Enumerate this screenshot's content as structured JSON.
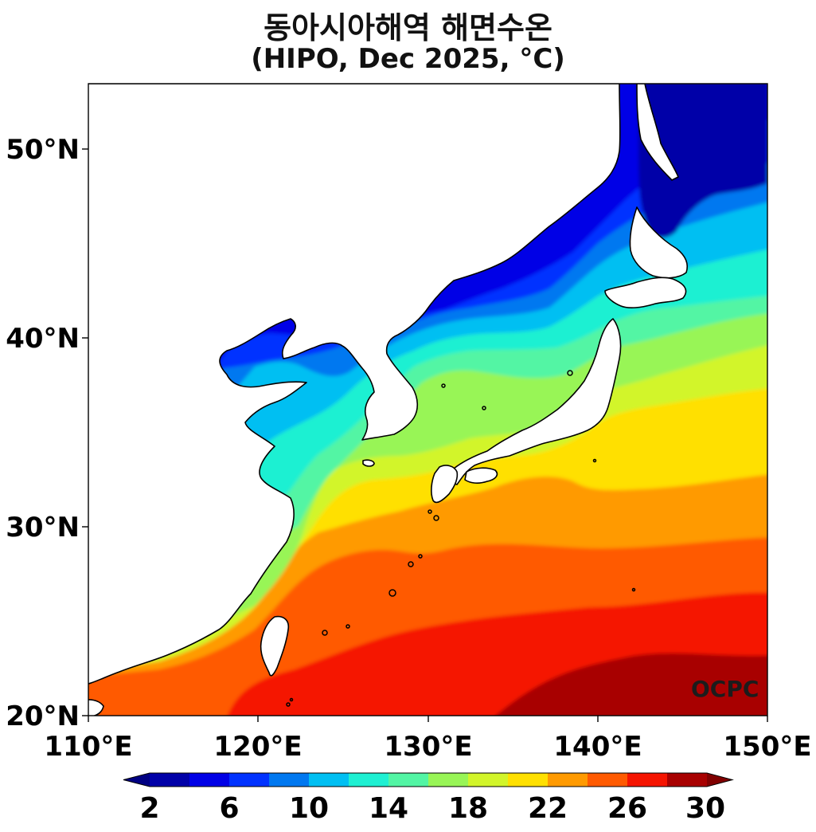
{
  "title_line1": "동아시아해역 해면수온",
  "title_line2": "(HIPO, Dec 2025, °C)",
  "watermark": "OCPC",
  "map": {
    "lon_range": [
      110,
      150
    ],
    "lat_range": [
      20,
      53.5
    ],
    "x_ticks": [
      "110°E",
      "120°E",
      "130°E",
      "140°E",
      "150°E"
    ],
    "y_ticks": [
      "20°N",
      "30°N",
      "40°N",
      "50°N"
    ]
  },
  "colorbar": {
    "levels": [
      2,
      4,
      6,
      8,
      10,
      12,
      14,
      16,
      18,
      20,
      22,
      24,
      26,
      28,
      30
    ],
    "tick_labels": [
      "2",
      "6",
      "10",
      "14",
      "18",
      "22",
      "26",
      "30"
    ],
    "colors": [
      "#0000a8",
      "#0000e6",
      "#0032ff",
      "#0078f0",
      "#00bff2",
      "#1ef0d2",
      "#52f5a4",
      "#98f556",
      "#d2f52a",
      "#ffe000",
      "#ff9a00",
      "#ff5a00",
      "#f51400",
      "#a80000"
    ],
    "extend": "both"
  }
}
